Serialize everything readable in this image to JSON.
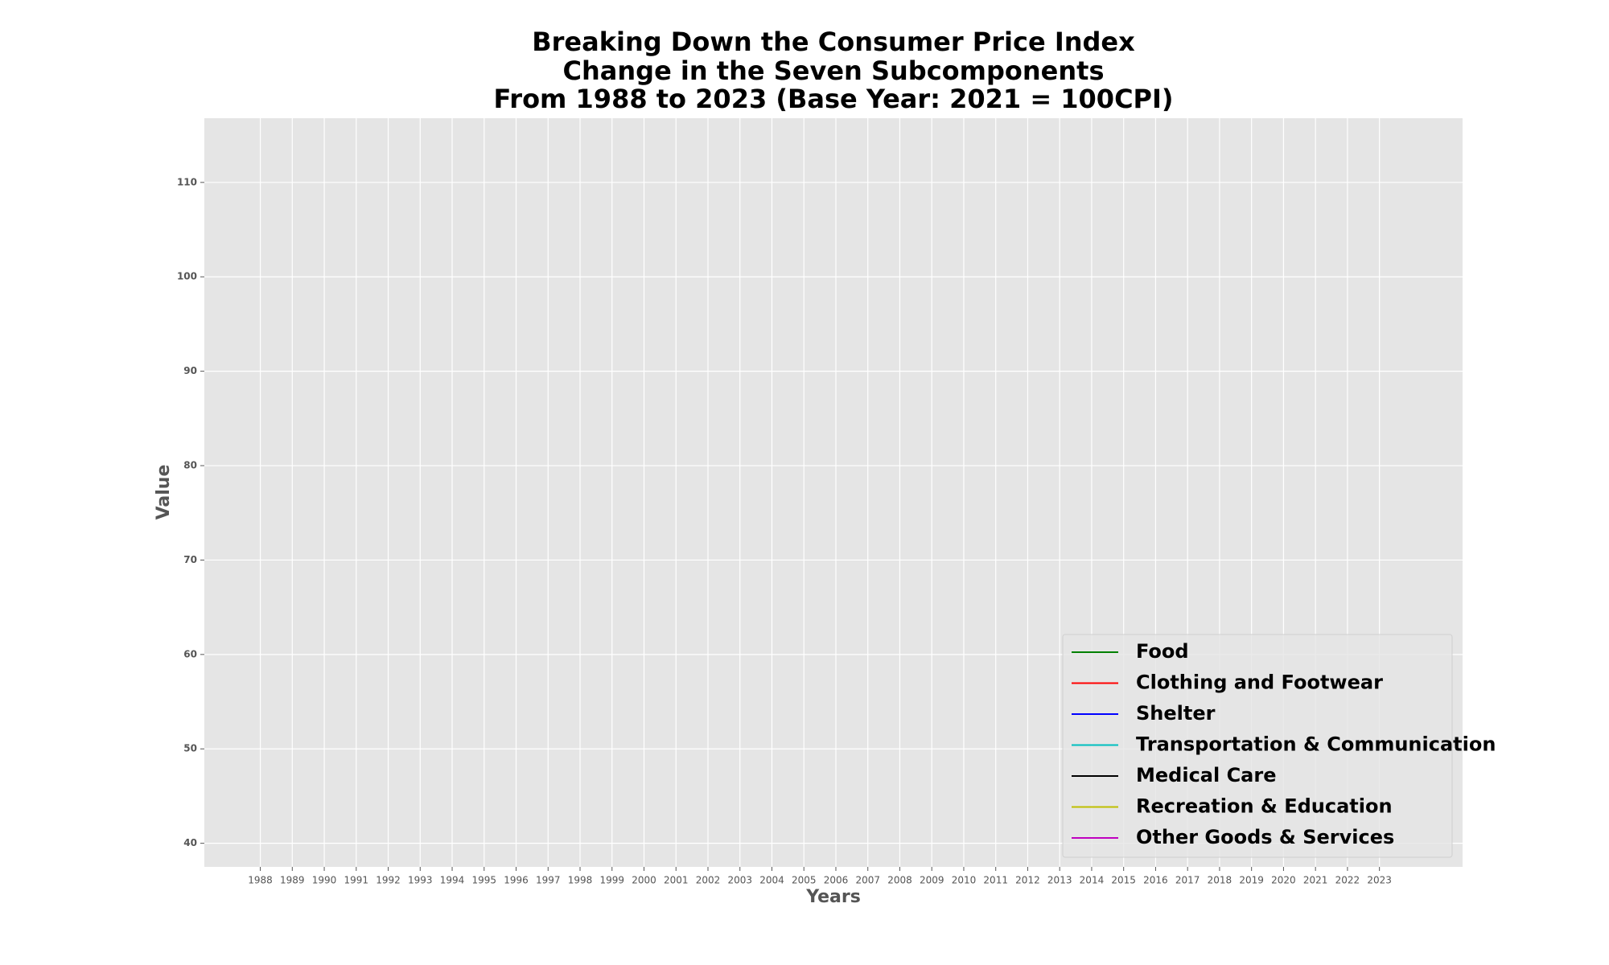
{
  "chart_data": {
    "type": "line",
    "title": [
      "Breaking Down the Consumer Price Index",
      "Change in the Seven Subcomponents",
      "From 1988 to 2023 (Base Year: 2021 = 100CPI)"
    ],
    "xlabel": "Years",
    "ylabel": "Value",
    "x": [
      1988,
      1989,
      1990,
      1991,
      1992,
      1993,
      1994,
      1995,
      1996,
      1997,
      1998,
      1999,
      2000,
      2001,
      2002,
      2003,
      2004,
      2005,
      2006,
      2007,
      2008,
      2009,
      2010,
      2011,
      2012,
      2013,
      2014,
      2015,
      2016,
      2017,
      2018,
      2019,
      2020,
      2021,
      2022,
      2023
    ],
    "xlim": [
      1986.25,
      2025.6
    ],
    "xticks": [
      1988,
      1989,
      1990,
      1991,
      1992,
      1993,
      1994,
      1995,
      1996,
      1997,
      1998,
      1999,
      2000,
      2001,
      2002,
      2003,
      2004,
      2005,
      2006,
      2007,
      2008,
      2009,
      2010,
      2011,
      2012,
      2013,
      2014,
      2015,
      2016,
      2017,
      2018,
      2019,
      2020,
      2021,
      2022,
      2023
    ],
    "ylim": [
      37.5,
      116.8
    ],
    "yticks": [
      40,
      50,
      60,
      70,
      80,
      90,
      100,
      110
    ],
    "grid": true,
    "legend": "lower right",
    "series": [
      {
        "name": "Food",
        "color": "#008000",
        "values": [
          null,
          null,
          null,
          null,
          null,
          null,
          null,
          null,
          null,
          null,
          null,
          null,
          null,
          null,
          null,
          null,
          null,
          null,
          null,
          null,
          null,
          null,
          null,
          null,
          null,
          null,
          null,
          null,
          null,
          null,
          null,
          null,
          null,
          null,
          null,
          null
        ]
      },
      {
        "name": "Clothing and Footwear",
        "color": "#ff0000",
        "values": [
          null,
          null,
          null,
          null,
          null,
          null,
          null,
          null,
          null,
          null,
          null,
          null,
          null,
          null,
          null,
          null,
          null,
          null,
          null,
          null,
          null,
          null,
          null,
          null,
          null,
          null,
          null,
          null,
          null,
          null,
          null,
          null,
          null,
          null,
          null,
          null
        ]
      },
      {
        "name": "Shelter",
        "color": "#0000ff",
        "values": [
          null,
          null,
          null,
          null,
          null,
          null,
          null,
          null,
          null,
          null,
          null,
          null,
          null,
          null,
          null,
          null,
          null,
          null,
          null,
          null,
          null,
          null,
          null,
          null,
          null,
          null,
          null,
          null,
          null,
          null,
          null,
          null,
          null,
          null,
          null,
          null
        ]
      },
      {
        "name": "Transportation & Communication",
        "color": "#00bfbf",
        "values": [
          null,
          null,
          null,
          null,
          null,
          null,
          null,
          null,
          null,
          null,
          null,
          null,
          null,
          null,
          null,
          null,
          null,
          null,
          null,
          null,
          null,
          null,
          null,
          null,
          null,
          null,
          null,
          null,
          null,
          null,
          null,
          null,
          null,
          null,
          null,
          null
        ]
      },
      {
        "name": "Medical Care",
        "color": "#000000",
        "values": [
          null,
          null,
          null,
          null,
          null,
          null,
          null,
          null,
          null,
          null,
          null,
          null,
          null,
          null,
          null,
          null,
          null,
          null,
          null,
          null,
          null,
          null,
          null,
          null,
          null,
          null,
          null,
          null,
          null,
          null,
          null,
          null,
          null,
          null,
          null,
          null
        ]
      },
      {
        "name": "Recreation & Education",
        "color": "#bfbf00",
        "values": [
          null,
          null,
          null,
          null,
          null,
          null,
          null,
          null,
          null,
          null,
          null,
          null,
          null,
          null,
          null,
          null,
          null,
          null,
          null,
          null,
          null,
          null,
          null,
          null,
          null,
          null,
          null,
          null,
          null,
          null,
          null,
          null,
          null,
          null,
          null,
          null
        ]
      },
      {
        "name": "Other Goods & Services",
        "color": "#bf00bf",
        "values": [
          null,
          null,
          null,
          null,
          null,
          null,
          null,
          null,
          null,
          null,
          null,
          null,
          null,
          null,
          null,
          null,
          null,
          null,
          null,
          null,
          null,
          null,
          null,
          null,
          null,
          null,
          null,
          null,
          null,
          null,
          null,
          null,
          null,
          null,
          null,
          null
        ]
      }
    ]
  }
}
